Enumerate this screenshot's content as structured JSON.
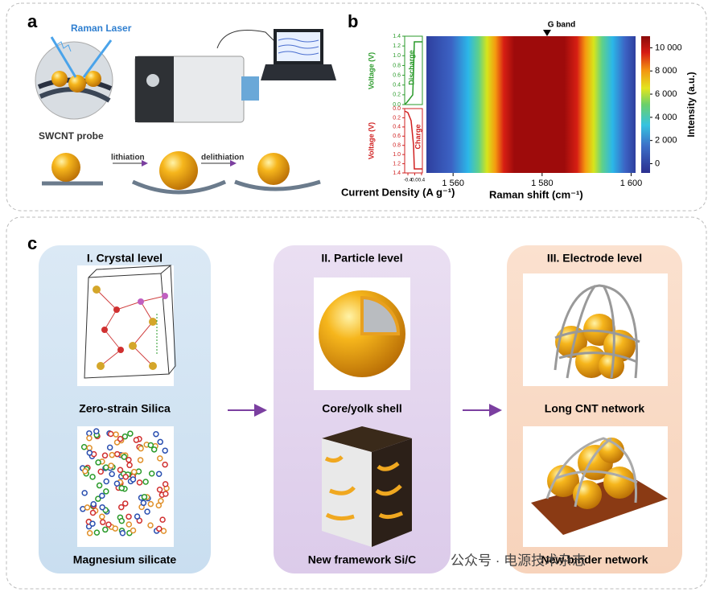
{
  "panel_a": {
    "label": "a",
    "laser": "Raman Laser",
    "probe": "SWCNT probe",
    "step1": "lithiation",
    "step2": "delithiation"
  },
  "panel_b": {
    "label": "b",
    "annotation": "G band",
    "x_title": "Raman shift (cm⁻¹)",
    "xlim": [
      1554,
      1601
    ],
    "xticks": [
      {
        "value": 1560,
        "label": "1 560"
      },
      {
        "value": 1580,
        "label": "1 580"
      },
      {
        "value": 1600,
        "label": "1 600"
      }
    ],
    "colorbar_title": "Intensity (a.u.)",
    "clim": [
      -800,
      11000
    ],
    "cticks": [
      0,
      {
        "value": 2000,
        "label": "2 000"
      },
      {
        "value": 4000,
        "label": "4 000"
      },
      {
        "value": 6000,
        "label": "6 000"
      },
      {
        "value": 8000,
        "label": "8 000"
      },
      {
        "value": 10000,
        "label": "10 000"
      }
    ],
    "discharge": "Discharge",
    "charge": "Charge",
    "voltage_title": "Voltage (V)",
    "vlim": [
      0,
      1.4
    ],
    "vticks": [
      {
        "value": 0,
        "label": "0.0"
      },
      0.2,
      0.4,
      0.6,
      0.8,
      {
        "value": 1,
        "label": "1.0"
      },
      1.2,
      1.4
    ],
    "current_title": "Current Density (A g⁻¹)",
    "current_lim": [
      -0.59,
      0.45
    ],
    "current_ticks": [
      -0.4,
      {
        "value": 0,
        "label": "0.0"
      },
      0.4
    ]
  },
  "panel_c": {
    "label": "c",
    "levels": [
      {
        "title": "I. Crystal level",
        "captions": [
          "Zero-strain Silica",
          "Magnesium silicate"
        ]
      },
      {
        "title": "II. Particle level",
        "captions": [
          "Core/yolk shell",
          "New framework Si/C"
        ]
      },
      {
        "title": "III. Electrode level",
        "captions": [
          "Long CNT network",
          "New binder network"
        ]
      }
    ]
  },
  "watermark": "公众号 · 电源技术杂志"
}
